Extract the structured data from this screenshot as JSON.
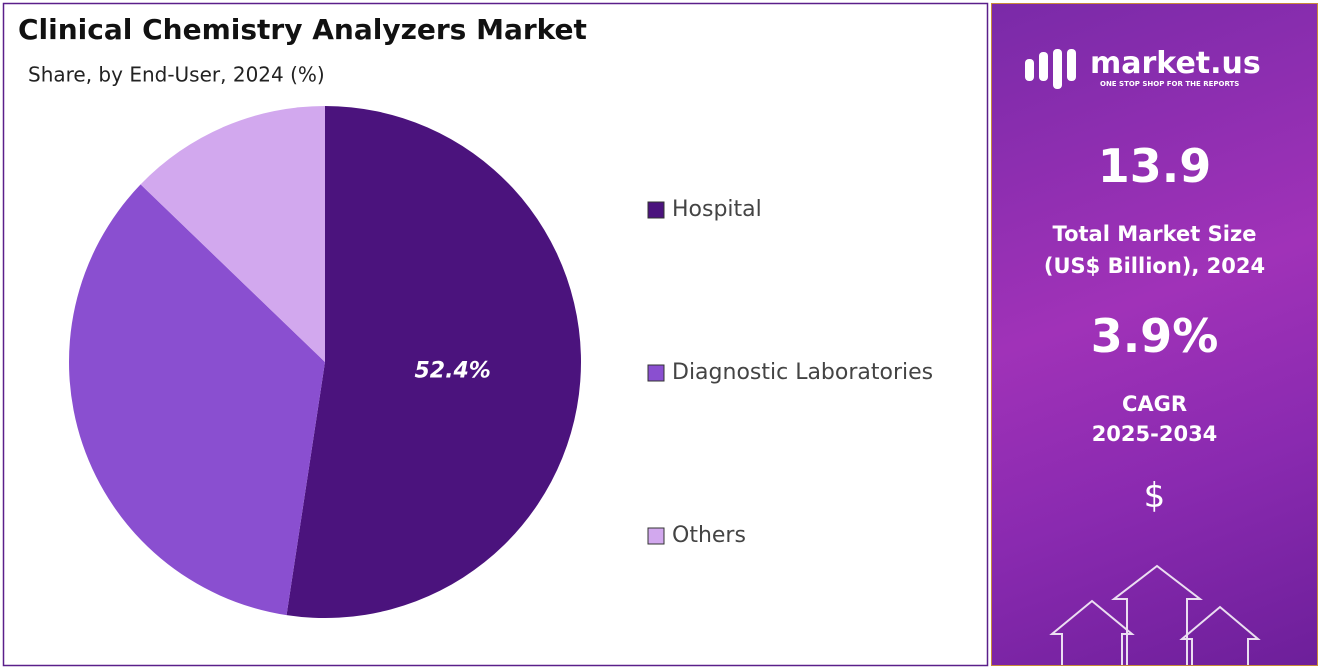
{
  "chart_data": {
    "type": "pie",
    "title": "Clinical Chemistry Analyzers Market",
    "subtitle": "Share, by End-User, 2024 (%)",
    "categories": [
      "Hospital",
      "Diagnostic Laboratories",
      "Others"
    ],
    "values": [
      52.4,
      34.8,
      12.8
    ],
    "value_labels": [
      "52.4%",
      null,
      null
    ],
    "colors": [
      "#4b137d",
      "#8a4fd0",
      "#d2a8ee"
    ],
    "legend": "right"
  },
  "side_panel": {
    "brand": "market.us",
    "tagline": "ONE STOP SHOP FOR THE REPORTS",
    "market_size": "13.9",
    "market_size_label_1": "Total Market Size",
    "market_size_label_2": "(US$ Billion), 2024",
    "cagr": "3.9%",
    "cagr_label_1": "CAGR",
    "cagr_label_2": "2025-2034",
    "icon": "$"
  }
}
